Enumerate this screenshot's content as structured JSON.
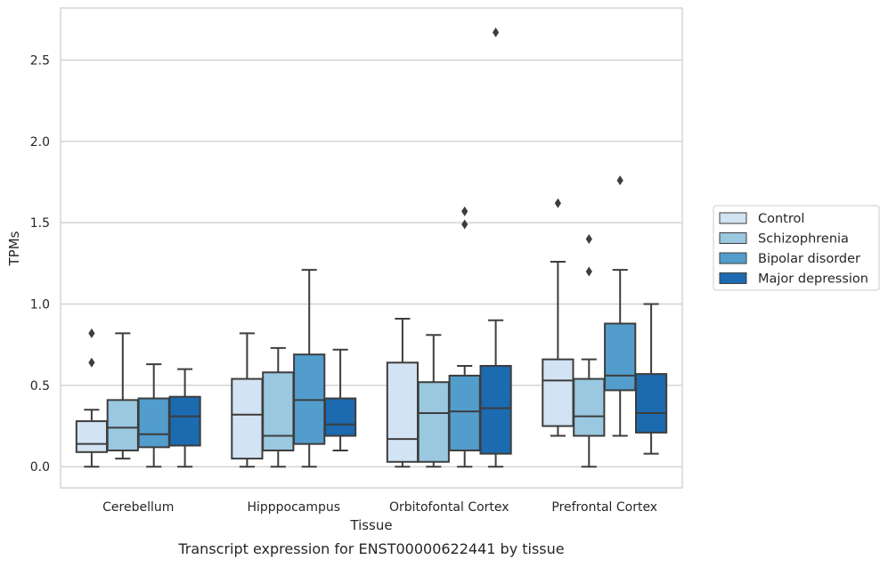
{
  "caption": "Transcript expression for ENST00000622441 by tissue",
  "chart_data": {
    "type": "box",
    "xlabel": "Tissue",
    "ylabel": "TPMs",
    "ylim": [
      -0.13,
      2.82
    ],
    "yticks": [
      "0.0",
      "0.5",
      "1.0",
      "1.5",
      "2.0",
      "2.5"
    ],
    "ytick_values": [
      0.0,
      0.5,
      1.0,
      1.5,
      2.0,
      2.5
    ],
    "grid": "horizontal",
    "legend_position": "right",
    "categories": [
      "Cerebellum",
      "Hipppocampus",
      "Orbitofontal Cortex",
      "Prefrontal Cortex"
    ],
    "series": [
      {
        "name": "Control",
        "color": "#d2e3f3",
        "boxes": [
          {
            "whisker_low": 0.0,
            "q1": 0.09,
            "median": 0.14,
            "q3": 0.28,
            "whisker_high": 0.35,
            "outliers": [
              0.64,
              0.82
            ]
          },
          {
            "whisker_low": 0.0,
            "q1": 0.05,
            "median": 0.32,
            "q3": 0.54,
            "whisker_high": 0.82,
            "outliers": []
          },
          {
            "whisker_low": 0.0,
            "q1": 0.03,
            "median": 0.17,
            "q3": 0.64,
            "whisker_high": 0.91,
            "outliers": []
          },
          {
            "whisker_low": 0.19,
            "q1": 0.25,
            "median": 0.53,
            "q3": 0.66,
            "whisker_high": 1.26,
            "outliers": [
              1.62
            ]
          }
        ]
      },
      {
        "name": "Schizophrenia",
        "color": "#9ac8e0",
        "boxes": [
          {
            "whisker_low": 0.05,
            "q1": 0.1,
            "median": 0.24,
            "q3": 0.41,
            "whisker_high": 0.82,
            "outliers": []
          },
          {
            "whisker_low": 0.0,
            "q1": 0.1,
            "median": 0.19,
            "q3": 0.58,
            "whisker_high": 0.73,
            "outliers": []
          },
          {
            "whisker_low": 0.0,
            "q1": 0.03,
            "median": 0.33,
            "q3": 0.52,
            "whisker_high": 0.81,
            "outliers": []
          },
          {
            "whisker_low": 0.0,
            "q1": 0.19,
            "median": 0.31,
            "q3": 0.54,
            "whisker_high": 0.66,
            "outliers": [
              1.2,
              1.4
            ]
          }
        ]
      },
      {
        "name": "Bipolar disorder",
        "color": "#529dcc",
        "boxes": [
          {
            "whisker_low": 0.0,
            "q1": 0.12,
            "median": 0.2,
            "q3": 0.42,
            "whisker_high": 0.63,
            "outliers": []
          },
          {
            "whisker_low": 0.0,
            "q1": 0.14,
            "median": 0.41,
            "q3": 0.69,
            "whisker_high": 1.21,
            "outliers": []
          },
          {
            "whisker_low": 0.0,
            "q1": 0.1,
            "median": 0.34,
            "q3": 0.56,
            "whisker_high": 0.62,
            "outliers": [
              1.49,
              1.57
            ]
          },
          {
            "whisker_low": 0.19,
            "q1": 0.47,
            "median": 0.56,
            "q3": 0.88,
            "whisker_high": 1.21,
            "outliers": [
              1.76
            ]
          }
        ]
      },
      {
        "name": "Major depression",
        "color": "#1c6aaf",
        "boxes": [
          {
            "whisker_low": 0.0,
            "q1": 0.13,
            "median": 0.31,
            "q3": 0.43,
            "whisker_high": 0.6,
            "outliers": []
          },
          {
            "whisker_low": 0.1,
            "q1": 0.19,
            "median": 0.26,
            "q3": 0.42,
            "whisker_high": 0.72,
            "outliers": []
          },
          {
            "whisker_low": 0.0,
            "q1": 0.08,
            "median": 0.36,
            "q3": 0.62,
            "whisker_high": 0.9,
            "outliers": [
              2.67
            ]
          },
          {
            "whisker_low": 0.08,
            "q1": 0.21,
            "median": 0.33,
            "q3": 0.57,
            "whisker_high": 1.0,
            "outliers": []
          }
        ]
      }
    ]
  }
}
